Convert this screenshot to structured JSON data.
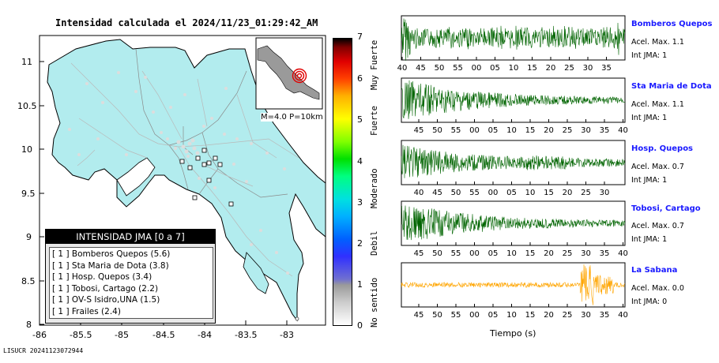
{
  "map": {
    "title": "Intensidad calculada el 2024/11/23_01:29:42_AM",
    "x_ticks": [
      "-86",
      "-85.5",
      "-85",
      "-84.5",
      "-84",
      "-83.5",
      "-83"
    ],
    "y_ticks": [
      "11",
      "10.5",
      "10",
      "9.5",
      "9",
      "8.5",
      "8"
    ],
    "inset_label": "M=4.0 P=10km",
    "land_color": "#b2ecee",
    "footer": "LISUCR 20241123072944"
  },
  "legend": {
    "title": "INTENSIDAD JMA [0 a 7]",
    "items": [
      {
        "level": "[ 1 ]",
        "text": "Bomberos Quepos (5.6)"
      },
      {
        "level": "[ 1 ]",
        "text": "Sta Maria de Dota (3.8)"
      },
      {
        "level": "[ 1 ]",
        "text": "Hosp. Quepos (3.4)"
      },
      {
        "level": "[ 1 ]",
        "text": "Tobosi, Cartago (2.2)"
      },
      {
        "level": "[ 1 ]",
        "text": "OV-S Isidro,UNA (1.5)"
      },
      {
        "level": "[ 1 ]",
        "text": "Frailes (2.4)"
      }
    ]
  },
  "colorbar": {
    "ticks": [
      "0",
      "1",
      "2",
      "3",
      "4",
      "5",
      "6",
      "7"
    ],
    "labels": [
      "No sentido",
      "Debil",
      "Moderado",
      "Fuerte",
      "Muy Fuerte"
    ]
  },
  "waveforms": {
    "xlabel": "Tiempo (s)",
    "traces": [
      {
        "name": "Bomberos Quepos",
        "acel": "Acel. Max. 1.1",
        "jma": "Int JMA: 1",
        "color": "#006400",
        "ticks": [
          "40",
          "45",
          "50",
          "55",
          "00",
          "05",
          "10",
          "15",
          "20",
          "25",
          "30",
          "35"
        ]
      },
      {
        "name": "Sta Maria de Dota",
        "acel": "Acel. Max. 1.1",
        "jma": "Int JMA: 1",
        "color": "#006400",
        "ticks": [
          "45",
          "50",
          "55",
          "00",
          "05",
          "10",
          "15",
          "20",
          "25",
          "30",
          "35",
          "40"
        ]
      },
      {
        "name": "Hosp. Quepos",
        "acel": "Acel. Max. 0.7",
        "jma": "Int JMA: 1",
        "color": "#006400",
        "ticks": [
          "40",
          "45",
          "50",
          "55",
          "00",
          "05",
          "10",
          "15",
          "20",
          "25",
          "30"
        ]
      },
      {
        "name": "Tobosi, Cartago",
        "acel": "Acel. Max. 0.7",
        "jma": "Int JMA: 1",
        "color": "#006400",
        "ticks": [
          "45",
          "50",
          "55",
          "00",
          "05",
          "10",
          "15",
          "20",
          "25",
          "30",
          "35",
          "40"
        ]
      },
      {
        "name": "La Sabana",
        "acel": "Acel. Max. 0.0",
        "jma": "Int JMA: 0",
        "color": "#ffa500",
        "ticks": [
          "45",
          "50",
          "55",
          "00",
          "05",
          "10",
          "15",
          "20",
          "25",
          "30",
          "35",
          "40"
        ]
      }
    ]
  }
}
